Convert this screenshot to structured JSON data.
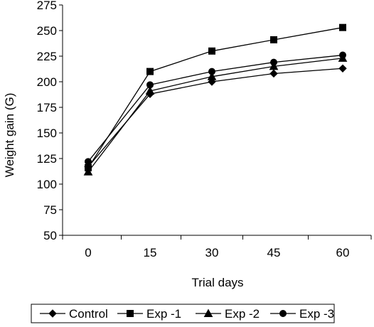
{
  "chart_data": {
    "type": "line",
    "title": "",
    "xlabel": "Trial days",
    "ylabel": "Weight gain (G)",
    "x": [
      0,
      15,
      30,
      45,
      60
    ],
    "categories": [
      "0",
      "15",
      "30",
      "45",
      "60"
    ],
    "ylim": [
      50,
      275
    ],
    "yticks": [
      50,
      75,
      100,
      125,
      150,
      175,
      200,
      225,
      250,
      275
    ],
    "grid": false,
    "legend_position": "bottom",
    "series": [
      {
        "name": "Control",
        "marker": "diamond",
        "color": "#000000",
        "values": [
          117,
          188,
          200,
          208,
          213
        ]
      },
      {
        "name": "Exp -1",
        "marker": "square",
        "color": "#000000",
        "values": [
          116,
          210,
          230,
          241,
          253
        ]
      },
      {
        "name": "Exp -2",
        "marker": "triangle",
        "color": "#000000",
        "values": [
          112,
          191,
          205,
          215,
          223
        ]
      },
      {
        "name": "Exp -3",
        "marker": "circle",
        "color": "#000000",
        "values": [
          122,
          197,
          210,
          219,
          226
        ]
      }
    ]
  }
}
